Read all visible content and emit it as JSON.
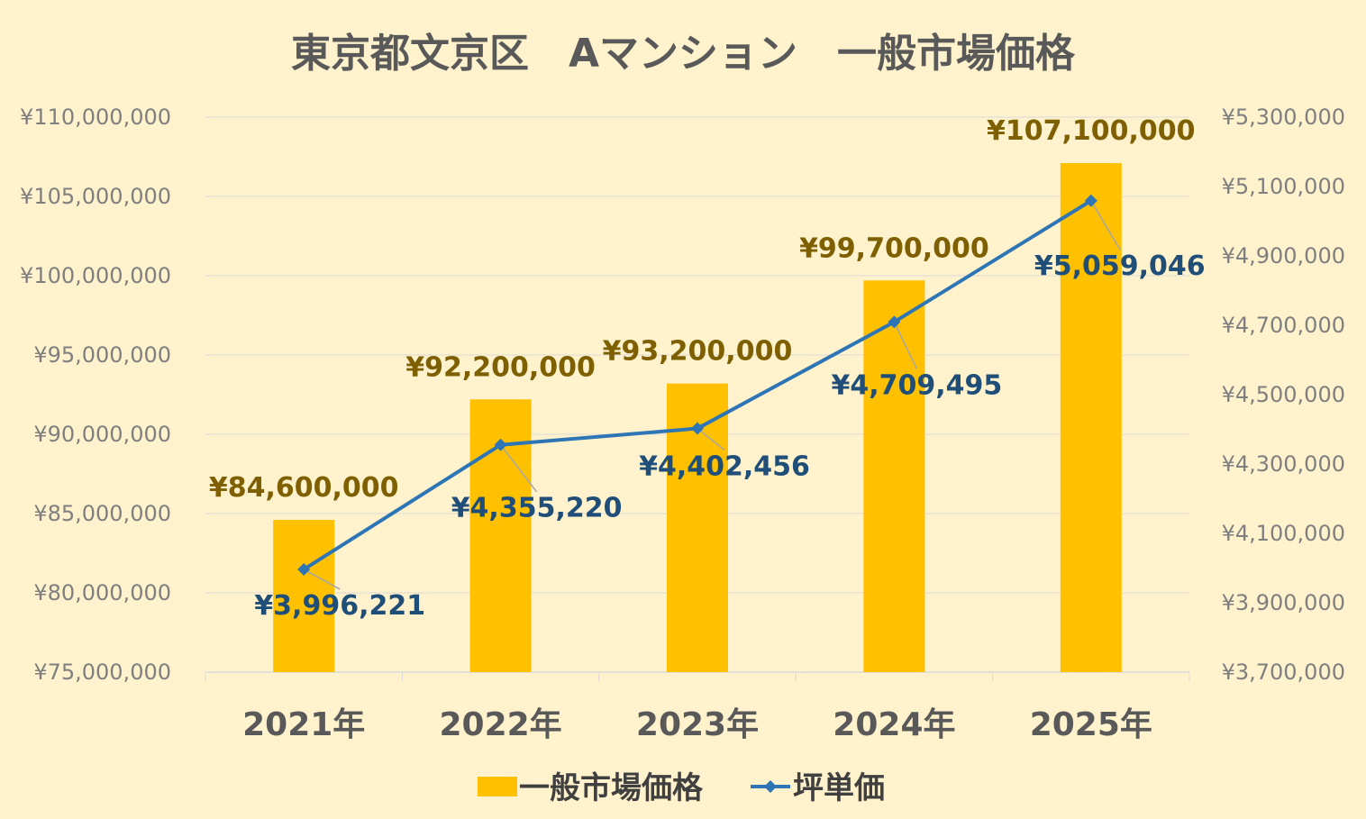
{
  "chart_data": {
    "type": "bar",
    "title": "東京都文京区　Aマンション　一般市場価格",
    "categories": [
      "2021年",
      "2022年",
      "2023年",
      "2024年",
      "2025年"
    ],
    "series": [
      {
        "name": "一般市場価格",
        "chart": "bar",
        "axis": "left",
        "color": "#ffc000",
        "values": [
          84600000,
          92200000,
          93200000,
          99700000,
          107100000
        ],
        "labels": [
          "¥84,600,000",
          "¥92,200,000",
          "¥93,200,000",
          "¥99,700,000",
          "¥107,100,000"
        ]
      },
      {
        "name": "坪単価",
        "chart": "line",
        "axis": "right",
        "color": "#2e75b6",
        "marker": "diamond",
        "values": [
          3996221,
          4355220,
          4402456,
          4709495,
          5059046
        ],
        "labels": [
          "¥3,996,221",
          "¥4,355,220",
          "¥4,402,456",
          "¥4,709,495",
          "¥5,059,046"
        ]
      }
    ],
    "y_left": {
      "ylim": [
        75000000,
        110000000
      ],
      "ticks": [
        75000000,
        80000000,
        85000000,
        90000000,
        95000000,
        100000000,
        105000000,
        110000000
      ],
      "tick_labels": [
        "¥75,000,000",
        "¥80,000,000",
        "¥85,000,000",
        "¥90,000,000",
        "¥95,000,000",
        "¥100,000,000",
        "¥105,000,000",
        "¥110,000,000"
      ]
    },
    "y_right": {
      "ylim": [
        3700000,
        5300000
      ],
      "ticks": [
        3700000,
        3900000,
        4100000,
        4300000,
        4500000,
        4700000,
        4900000,
        5100000,
        5300000
      ],
      "tick_labels": [
        "¥3,700,000",
        "¥3,900,000",
        "¥4,100,000",
        "¥4,300,000",
        "¥4,500,000",
        "¥4,700,000",
        "¥4,900,000",
        "¥5,100,000",
        "¥5,300,000"
      ]
    },
    "grid": true,
    "legend": "bottom",
    "colors": {
      "background": "#fff2cc",
      "grid": "#d9d9d9",
      "bar_label": "#7f6000",
      "line_label": "#1f4e79"
    }
  }
}
